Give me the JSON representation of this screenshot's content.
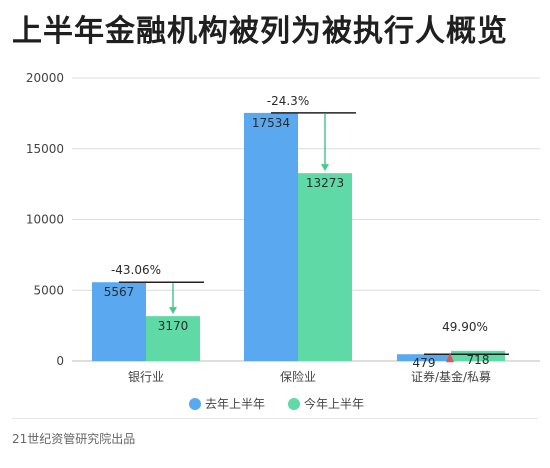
{
  "title": "上半年金融机构被列为被执行人概览",
  "footer": "21世纪资管研究院出品",
  "colors": {
    "last_year": "#5aa9f0",
    "this_year": "#5fd9a6",
    "arrow_green": "#4cc78d",
    "arrow_red": "#e05454",
    "axis_text": "#444444",
    "grid": "#dcdcdc"
  },
  "chart_data": {
    "type": "bar",
    "categories": [
      "银行业",
      "保险业",
      "证券/基金/私募"
    ],
    "series": [
      {
        "name": "去年上半年",
        "values": [
          5567,
          17534,
          479
        ]
      },
      {
        "name": "今年上半年",
        "values": [
          3170,
          13273,
          718
        ]
      }
    ],
    "changes": [
      "-43.06%",
      "-24.3%",
      "49.90%"
    ],
    "ylim": [
      0,
      20000
    ],
    "yticks": [
      0,
      5000,
      10000,
      15000,
      20000
    ],
    "legend_position": "bottom",
    "grid": true
  }
}
